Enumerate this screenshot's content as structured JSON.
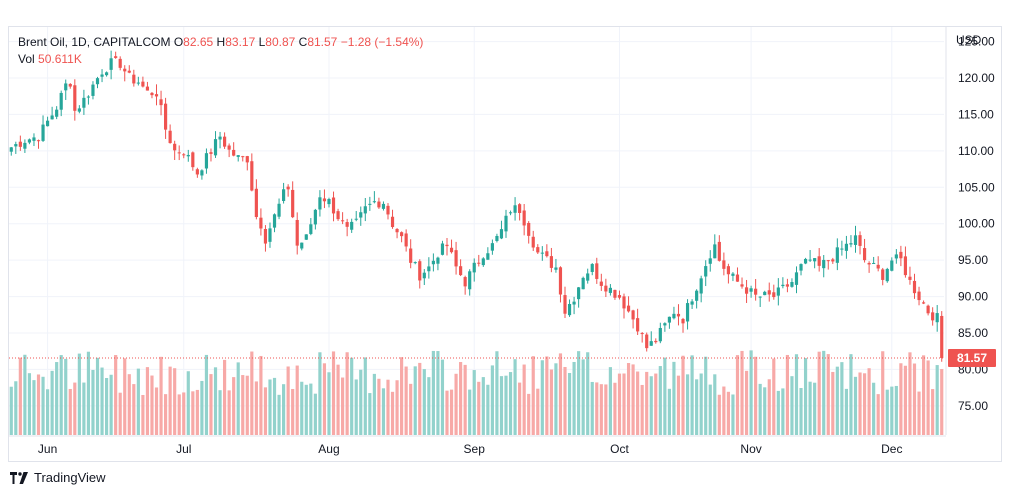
{
  "legend": {
    "symbol": "Brent Oil, 1D, CAPITALCOM",
    "o_label": "O",
    "o_value": "82.65",
    "h_label": "H",
    "h_value": "83.17",
    "l_label": "L",
    "l_value": "80.87",
    "c_label": "C",
    "c_value": "81.57",
    "change": "−1.28 (−1.54%)",
    "vol_label": "Vol",
    "vol_value": "50.611K"
  },
  "footer": {
    "brand": "TradingView",
    "logo_icon": "tradingview-logo-icon"
  },
  "colors": {
    "up": "#26a69a",
    "down": "#ef5350",
    "up_vol": "#92d2cc",
    "down_vol": "#f7a9a7",
    "grid": "#f0f3fa",
    "price_line": "#ef5350"
  },
  "chart_data": {
    "type": "candlestick",
    "currency": "USD",
    "last_price": "81.57",
    "ylim": [
      71,
      127
    ],
    "y_ticks": [
      "75.00",
      "80.00",
      "85.00",
      "90.00",
      "95.00",
      "100.00",
      "105.00",
      "110.00",
      "115.00",
      "120.00",
      "125.00"
    ],
    "x_ticks": [
      "Jun",
      "Jul",
      "Aug",
      "Sep",
      "Oct",
      "Nov",
      "Dec"
    ],
    "anchors": [
      [
        0,
        110.5
      ],
      [
        3,
        111.5
      ],
      [
        6,
        112
      ],
      [
        8,
        114
      ],
      [
        10,
        116
      ],
      [
        12,
        119
      ],
      [
        13,
        119.5
      ],
      [
        14,
        115.5
      ],
      [
        16,
        117
      ],
      [
        18,
        119
      ],
      [
        20,
        121
      ],
      [
        22,
        122
      ],
      [
        24,
        122
      ],
      [
        26,
        120
      ],
      [
        28,
        119.5
      ],
      [
        30,
        118
      ],
      [
        32,
        118
      ],
      [
        34,
        113
      ],
      [
        36,
        110
      ],
      [
        38,
        110
      ],
      [
        40,
        108
      ],
      [
        41,
        107
      ],
      [
        42,
        108
      ],
      [
        44,
        110
      ],
      [
        46,
        112
      ],
      [
        48,
        110
      ],
      [
        50,
        109
      ],
      [
        52,
        109
      ],
      [
        54,
        101
      ],
      [
        55,
        100
      ],
      [
        56,
        98
      ],
      [
        58,
        101
      ],
      [
        60,
        104
      ],
      [
        61,
        105
      ],
      [
        63,
        97
      ],
      [
        65,
        98
      ],
      [
        68,
        104
      ],
      [
        70,
        103
      ],
      [
        72,
        101
      ],
      [
        74,
        99
      ],
      [
        76,
        100
      ],
      [
        78,
        102
      ],
      [
        80,
        103
      ],
      [
        82,
        103
      ],
      [
        84,
        100
      ],
      [
        86,
        98
      ],
      [
        88,
        95
      ],
      [
        89,
        94
      ],
      [
        90,
        93
      ],
      [
        92,
        94
      ],
      [
        94,
        96
      ],
      [
        96,
        97
      ],
      [
        98,
        94
      ],
      [
        100,
        92
      ],
      [
        102,
        94
      ],
      [
        104,
        96
      ],
      [
        106,
        97
      ],
      [
        108,
        99
      ],
      [
        110,
        102
      ],
      [
        112,
        102
      ],
      [
        114,
        99
      ],
      [
        116,
        96
      ],
      [
        118,
        95
      ],
      [
        120,
        94
      ],
      [
        122,
        88
      ],
      [
        124,
        90
      ],
      [
        126,
        93
      ],
      [
        128,
        94
      ],
      [
        130,
        92
      ],
      [
        132,
        91
      ],
      [
        134,
        90
      ],
      [
        136,
        88
      ],
      [
        138,
        86
      ],
      [
        140,
        83
      ],
      [
        142,
        84
      ],
      [
        144,
        86
      ],
      [
        146,
        88
      ],
      [
        148,
        87
      ],
      [
        150,
        90
      ],
      [
        152,
        93
      ],
      [
        154,
        96
      ],
      [
        155,
        97
      ],
      [
        156,
        95
      ],
      [
        158,
        93
      ],
      [
        160,
        92
      ],
      [
        162,
        91
      ],
      [
        164,
        90
      ],
      [
        166,
        90
      ],
      [
        168,
        90
      ],
      [
        170,
        91
      ],
      [
        172,
        92
      ],
      [
        174,
        94
      ],
      [
        176,
        95
      ],
      [
        178,
        94
      ],
      [
        180,
        95
      ],
      [
        182,
        96
      ],
      [
        184,
        97
      ],
      [
        186,
        98
      ],
      [
        188,
        95
      ],
      [
        190,
        94
      ],
      [
        192,
        93
      ],
      [
        194,
        95
      ],
      [
        196,
        95
      ],
      [
        198,
        92
      ],
      [
        200,
        90
      ],
      [
        202,
        88
      ],
      [
        204,
        87
      ],
      [
        206,
        86
      ],
      [
        208,
        86
      ],
      [
        210,
        84
      ],
      [
        212,
        86
      ],
      [
        214,
        87
      ],
      [
        216,
        88
      ],
      [
        218,
        86
      ],
      [
        220,
        84
      ],
      [
        222,
        79
      ],
      [
        224,
        78
      ],
      [
        226,
        77.5
      ],
      [
        228,
        78
      ],
      [
        230,
        80
      ],
      [
        232,
        81.5
      ]
    ],
    "month_days": {
      "Jun": 8,
      "Jul": 38,
      "Aug": 70,
      "Sep": 102,
      "Oct": 134,
      "Nov": 163,
      "Dec": 194
    },
    "day_count": 206
  }
}
